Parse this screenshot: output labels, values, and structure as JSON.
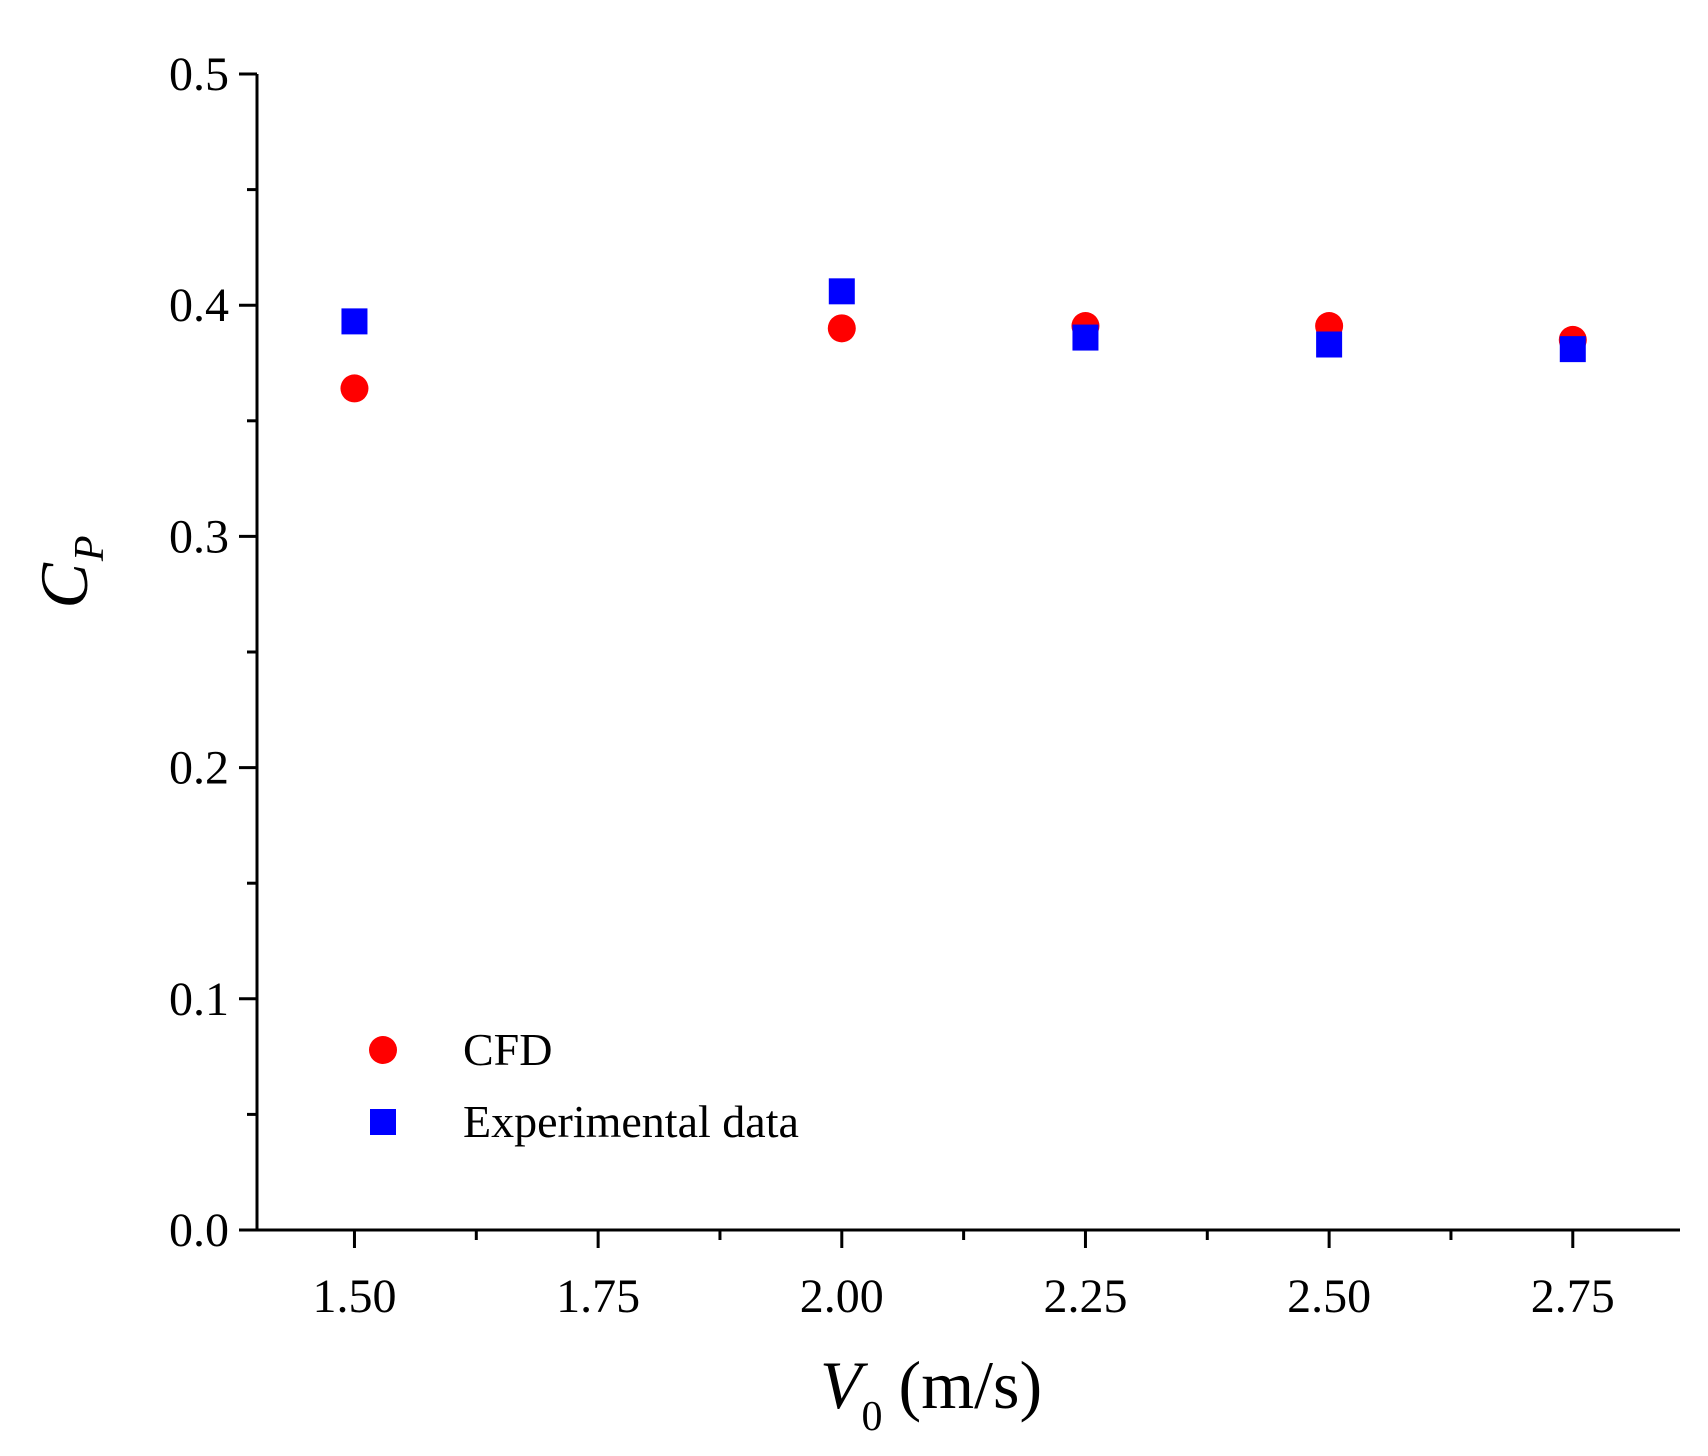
{
  "chart_data": {
    "type": "scatter",
    "title": "",
    "xlabel": {
      "symbol": "V",
      "subscript": "0",
      "unit": "(m/s)"
    },
    "ylabel": {
      "symbol": "C",
      "subscript": "P"
    },
    "xlim": [
      1.4,
      2.86
    ],
    "ylim": [
      0.0,
      0.5
    ],
    "x_ticks": [
      1.5,
      1.75,
      2.0,
      2.25,
      2.5,
      2.75
    ],
    "x_tick_labels": [
      "1.50",
      "1.75",
      "2.00",
      "2.25",
      "2.50",
      "2.75"
    ],
    "x_minor_ticks": [
      1.625,
      1.875,
      2.125,
      2.375,
      2.625
    ],
    "y_ticks": [
      0.0,
      0.1,
      0.2,
      0.3,
      0.4,
      0.5
    ],
    "y_tick_labels": [
      "0.0",
      "0.1",
      "0.2",
      "0.3",
      "0.4",
      "0.5"
    ],
    "y_minor_ticks": [
      0.05,
      0.15,
      0.25,
      0.35,
      0.45
    ],
    "grid": false,
    "legend_position": "bottom-left",
    "series": [
      {
        "name": "CFD",
        "marker": "circle",
        "color": "#ff0000",
        "x": [
          1.5,
          2.0,
          2.25,
          2.5,
          2.75
        ],
        "y": [
          0.364,
          0.39,
          0.391,
          0.391,
          0.385
        ]
      },
      {
        "name": "Experimental data",
        "marker": "square",
        "color": "#0000ff",
        "x": [
          1.5,
          2.0,
          2.25,
          2.5,
          2.75
        ],
        "y": [
          0.393,
          0.406,
          0.386,
          0.383,
          0.381
        ]
      }
    ]
  }
}
